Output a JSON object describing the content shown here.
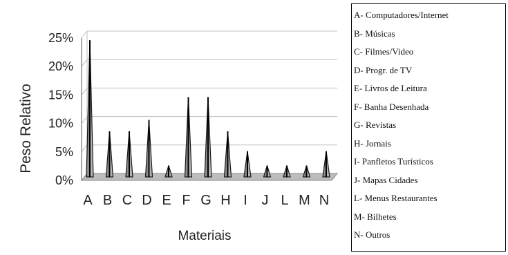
{
  "chart_data": {
    "type": "area",
    "title": "",
    "xlabel": "Materiais",
    "ylabel": "Peso Relativo",
    "categories": [
      "A",
      "B",
      "C",
      "D",
      "E",
      "F",
      "G",
      "H",
      "I",
      "J",
      "L",
      "M",
      "N"
    ],
    "values": [
      24,
      8,
      8,
      10,
      2,
      14,
      14,
      8,
      4.5,
      2,
      2,
      2,
      4.5
    ],
    "ylim": [
      0,
      25
    ],
    "yticks": [
      "0%",
      "5%",
      "10%",
      "15%",
      "20%",
      "25%"
    ],
    "grid": true,
    "legend_placement": "right",
    "legend": [
      "A- Computadores/Internet",
      "B- Músicas",
      "C- Filmes/Video",
      "D- Progr. de TV",
      "E- Livros de Leitura",
      "F- Banha Desenhada",
      "G- Revistas",
      "H- Jornais",
      "I- Panfletos Turísticos",
      "J- Mapas Cidades",
      "L- Menus Restaurantes",
      "M- Bilhetes",
      "N- Outros"
    ],
    "colors": {
      "fill": "#9a9a9a",
      "edge": "#1a1a1a",
      "floor": "#bdbdbd",
      "grid": "#bfbfbf"
    }
  }
}
